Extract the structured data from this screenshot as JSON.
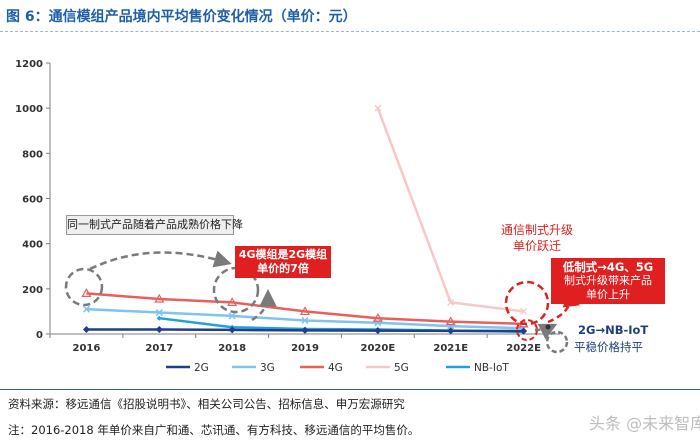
{
  "header": {
    "title": "图 6：通信模组产品境内平均售价变化情况（单价：元）"
  },
  "chart_data": {
    "type": "line",
    "categories": [
      "2016",
      "2017",
      "2018",
      "2019",
      "2020E",
      "2021E",
      "2022E"
    ],
    "yticks": [
      "0",
      "200",
      "400",
      "600",
      "800",
      "1000",
      "1200"
    ],
    "ylim": [
      0,
      1200
    ],
    "grid": false,
    "legend_position": "bottom",
    "series": [
      {
        "name": "2G",
        "color": "#1f3f8a",
        "values": [
          20,
          20,
          18,
          16,
          15,
          14,
          13
        ]
      },
      {
        "name": "3G",
        "color": "#7fc4ef",
        "values": [
          110,
          95,
          80,
          60,
          50,
          35,
          25
        ]
      },
      {
        "name": "4G",
        "color": "#e8605b",
        "values": [
          180,
          155,
          140,
          100,
          70,
          55,
          45
        ]
      },
      {
        "name": "5G",
        "color": "#f6c9c8",
        "values": [
          null,
          null,
          null,
          null,
          1000,
          140,
          100
        ]
      },
      {
        "name": "NB-IoT",
        "color": "#1da1e0",
        "values": [
          null,
          70,
          30,
          22,
          20,
          15,
          10
        ]
      }
    ]
  },
  "annotations": {
    "gray_box": "同一制式产品随着产品成熟价格下降",
    "red_box1_line1": "4G模组是2G模组",
    "red_box1_line2": "单价的7倍",
    "upgrade_line1": "通信制式升级",
    "upgrade_line2": "单价跃迁",
    "red_box2_line1": "低制式→4G、5G",
    "red_box2_line2": "制式升级带来产品",
    "red_box2_line3": "单价上升",
    "nbiot_label": "2G→NB-IoT",
    "flat_label": "平稳价格持平"
  },
  "footer": {
    "source": "资料来源：移远通信《招股说明书》、相关公司公告、招标信息、申万宏源研究",
    "note": "注：2016-2018 年单价来自广和通、芯讯通、有方科技、移远通信的平均售价。",
    "watermark": "头条 @未来智库"
  }
}
